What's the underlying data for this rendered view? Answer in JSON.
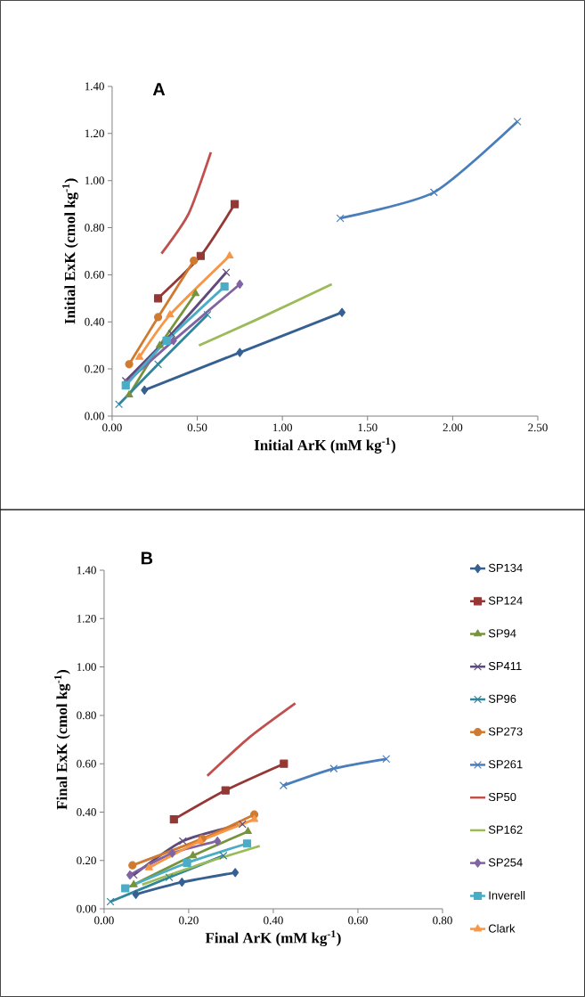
{
  "chart_data": [
    {
      "type": "line",
      "title": "A",
      "xlabel": "Initial ArK (mM kg$^{-1}$)",
      "ylabel": "Initial ExK (cmol kg$^{-1}$)",
      "xlim": [
        0,
        2.5
      ],
      "ylim": [
        0,
        1.4
      ],
      "xticks": [
        {
          "value": 0,
          "label": "0.00"
        },
        {
          "value": 0.5,
          "label": "0.50"
        },
        {
          "value": 1,
          "label": "1.00"
        },
        {
          "value": 1.5,
          "label": "1.50"
        },
        {
          "value": 2,
          "label": "2.00"
        },
        {
          "value": 2.5,
          "label": "2.50"
        }
      ],
      "yticks": [
        {
          "value": 0,
          "label": "0.00"
        },
        {
          "value": 0.2,
          "label": "0.20"
        },
        {
          "value": 0.4,
          "label": "0.40"
        },
        {
          "value": 0.6,
          "label": "0.60"
        },
        {
          "value": 0.8,
          "label": "0.80"
        },
        {
          "value": 1,
          "label": "1.00"
        },
        {
          "value": 1.2,
          "label": "1.20"
        },
        {
          "value": 1.4,
          "label": "1.40"
        }
      ],
      "series": [
        {
          "color": "#376092",
          "marker": "diamond",
          "x": [
            0.19,
            0.75,
            1.35
          ],
          "values": [
            0.11,
            0.27,
            0.44
          ]
        },
        {
          "color": "#953735",
          "marker": "square",
          "x": [
            0.27,
            0.52,
            0.72
          ],
          "values": [
            0.5,
            0.68,
            0.9
          ]
        },
        {
          "color": "#77933C",
          "marker": "triangle",
          "x": [
            0.1,
            0.28,
            0.49
          ],
          "values": [
            0.09,
            0.3,
            0.52
          ]
        },
        {
          "color": "#604A7B",
          "marker": "cross",
          "x": [
            0.08,
            0.35,
            0.67
          ],
          "values": [
            0.15,
            0.35,
            0.61
          ]
        },
        {
          "color": "#31859C",
          "marker": "cross",
          "x": [
            0.04,
            0.27,
            0.56
          ],
          "values": [
            0.05,
            0.22,
            0.43
          ]
        },
        {
          "color": "#D07A30",
          "marker": "circle",
          "x": [
            0.1,
            0.27,
            0.48
          ],
          "values": [
            0.22,
            0.42,
            0.66
          ]
        },
        {
          "color": "#4A7EBB",
          "marker": "cross",
          "x": [
            1.34,
            1.89,
            2.38
          ],
          "values": [
            0.84,
            0.95,
            1.25
          ]
        },
        {
          "color": "#C0504D",
          "marker": "none",
          "x": [
            0.29,
            0.45,
            0.58
          ],
          "values": [
            0.69,
            0.86,
            1.12
          ]
        },
        {
          "color": "#9BBB59",
          "marker": "none",
          "x": [
            0.51,
            0.85,
            1.29
          ],
          "values": [
            0.3,
            0.41,
            0.56
          ]
        },
        {
          "color": "#8064A2",
          "marker": "diamond",
          "x": [
            0.08,
            0.36,
            0.75
          ],
          "values": [
            0.14,
            0.32,
            0.56
          ]
        },
        {
          "color": "#4BACC6",
          "marker": "square",
          "x": [
            0.08,
            0.32,
            0.66
          ],
          "values": [
            0.13,
            0.32,
            0.55
          ]
        },
        {
          "color": "#F79646",
          "marker": "triangle",
          "x": [
            0.16,
            0.34,
            0.69
          ],
          "values": [
            0.25,
            0.43,
            0.68
          ]
        }
      ]
    },
    {
      "type": "line",
      "title": "B",
      "xlabel": "Final ArK (mM kg$^{-1}$)",
      "ylabel": "Final ExK (cmol kg$^{-1}$)",
      "legend": "right",
      "xlim": [
        0,
        0.8
      ],
      "ylim": [
        0,
        1.4
      ],
      "xticks": [
        {
          "value": 0,
          "label": "0.00"
        },
        {
          "value": 0.2,
          "label": "0.20"
        },
        {
          "value": 0.4,
          "label": "0.40"
        },
        {
          "value": 0.6,
          "label": "0.60"
        },
        {
          "value": 0.8,
          "label": "0.80"
        }
      ],
      "yticks": [
        {
          "value": 0,
          "label": "0.00"
        },
        {
          "value": 0.2,
          "label": "0.20"
        },
        {
          "value": 0.4,
          "label": "0.40"
        },
        {
          "value": 0.6,
          "label": "0.60"
        },
        {
          "value": 0.8,
          "label": "0.80"
        },
        {
          "value": 1,
          "label": "1.00"
        },
        {
          "value": 1.2,
          "label": "1.20"
        },
        {
          "value": 1.4,
          "label": "1.40"
        }
      ],
      "series": [
        {
          "name": "SP134",
          "color": "#376092",
          "marker": "diamond",
          "x": [
            0.075,
            0.184,
            0.31
          ],
          "values": [
            0.06,
            0.11,
            0.15
          ]
        },
        {
          "name": "SP124",
          "color": "#953735",
          "marker": "square",
          "x": [
            0.165,
            0.287,
            0.425
          ],
          "values": [
            0.37,
            0.49,
            0.6
          ]
        },
        {
          "name": "SP94",
          "color": "#77933C",
          "marker": "triangle",
          "x": [
            0.07,
            0.21,
            0.34
          ],
          "values": [
            0.1,
            0.22,
            0.32
          ]
        },
        {
          "name": "SP411",
          "color": "#604A7B",
          "marker": "cross",
          "x": [
            0.07,
            0.186,
            0.327
          ],
          "values": [
            0.14,
            0.28,
            0.35
          ]
        },
        {
          "name": "SP96",
          "color": "#31859C",
          "marker": "cross",
          "x": [
            0.015,
            0.154,
            0.282
          ],
          "values": [
            0.03,
            0.13,
            0.22
          ]
        },
        {
          "name": "SP273",
          "color": "#D07A30",
          "marker": "circle",
          "x": [
            0.067,
            0.232,
            0.355
          ],
          "values": [
            0.18,
            0.29,
            0.39
          ]
        },
        {
          "name": "SP261",
          "color": "#4A7EBB",
          "marker": "cross",
          "x": [
            0.424,
            0.543,
            0.667
          ],
          "values": [
            0.51,
            0.58,
            0.62
          ]
        },
        {
          "name": "SP50",
          "color": "#C0504D",
          "marker": "none",
          "x": [
            0.244,
            0.344,
            0.452
          ],
          "values": [
            0.55,
            0.71,
            0.85
          ]
        },
        {
          "name": "SP162",
          "color": "#9BBB59",
          "marker": "none",
          "x": [
            0.09,
            0.22,
            0.368
          ],
          "values": [
            0.1,
            0.18,
            0.26
          ]
        },
        {
          "name": "SP254",
          "color": "#8064A2",
          "marker": "diamond",
          "x": [
            0.061,
            0.161,
            0.268
          ],
          "values": [
            0.14,
            0.23,
            0.28
          ]
        },
        {
          "name": "Inverell",
          "color": "#4BACC6",
          "marker": "square",
          "x": [
            0.05,
            0.196,
            0.338
          ],
          "values": [
            0.085,
            0.19,
            0.27
          ]
        },
        {
          "name": "Clark",
          "color": "#F79646",
          "marker": "triangle",
          "x": [
            0.106,
            0.227,
            0.355
          ],
          "values": [
            0.17,
            0.28,
            0.37
          ]
        }
      ]
    }
  ]
}
